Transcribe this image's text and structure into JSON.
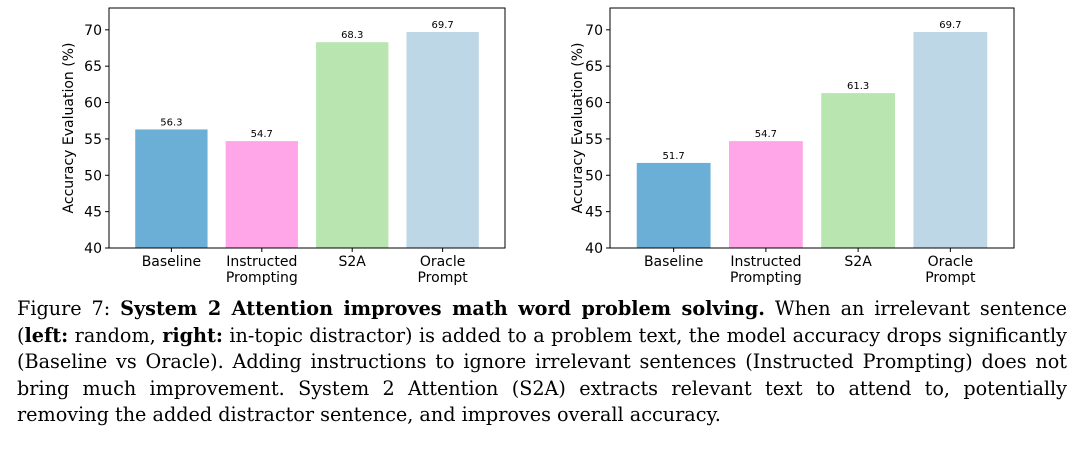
{
  "chart_data": [
    {
      "type": "bar",
      "categories": [
        "Baseline",
        "Instructed\nPrompting",
        "S2A",
        "Oracle\nPrompt"
      ],
      "values": [
        56.3,
        54.7,
        68.3,
        69.7
      ],
      "value_labels": [
        "56.3",
        "54.7",
        "68.3",
        "69.7"
      ],
      "colors": [
        "#6baed6",
        "#ffa6e9",
        "#b9e5b1",
        "#bdd7e7"
      ],
      "ylabel": "Accuracy Evaluation (%)",
      "ylim": [
        40,
        73
      ],
      "yticks": [
        40,
        45,
        50,
        55,
        60,
        65,
        70
      ],
      "grid": false
    },
    {
      "type": "bar",
      "categories": [
        "Baseline",
        "Instructed\nPrompting",
        "S2A",
        "Oracle\nPrompt"
      ],
      "values": [
        51.7,
        54.7,
        61.3,
        69.7
      ],
      "value_labels": [
        "51.7",
        "54.7",
        "61.3",
        "69.7"
      ],
      "colors": [
        "#6baed6",
        "#ffa6e9",
        "#b9e5b1",
        "#bdd7e7"
      ],
      "ylabel": "Accuracy Evaluation (%)",
      "ylim": [
        40,
        73
      ],
      "yticks": [
        40,
        45,
        50,
        55,
        60,
        65,
        70
      ],
      "grid": false
    }
  ],
  "caption": {
    "prefix": "Figure 7: ",
    "bold_title": "System 2 Attention improves math word problem solving.",
    "t1": " When an irrelevant sentence (",
    "left_label": "left:",
    "t2": " random, ",
    "right_label": "right:",
    "t3": " in-topic distractor) is added to a problem text, the model accuracy drops significantly (Baseline vs Oracle). Adding instructions to ignore irrelevant sentences (Instructed Prompting) does not bring much improvement. System 2 Attention (S2A) extracts relevant text to attend to, potentially removing the added distractor sentence, and improves overall accuracy."
  }
}
